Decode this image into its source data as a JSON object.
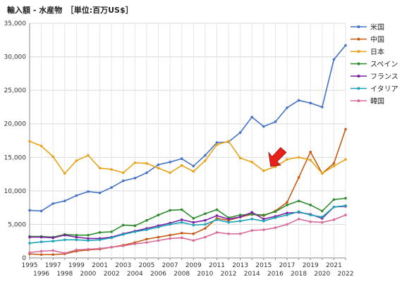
{
  "chart_data": {
    "type": "line",
    "title": "輸入額 - 水産物　［単位:百万US$］",
    "x": [
      1995,
      1996,
      1997,
      1998,
      1999,
      2000,
      2001,
      2002,
      2003,
      2004,
      2005,
      2006,
      2007,
      2008,
      2009,
      2010,
      2011,
      2012,
      2013,
      2014,
      2015,
      2016,
      2017,
      2018,
      2019,
      2020,
      2021,
      2022
    ],
    "ylim": [
      0,
      35000
    ],
    "yticks": [
      "0",
      "5,000",
      "10,000",
      "15,000",
      "20,000",
      "25,000",
      "30,000",
      "35,000"
    ],
    "ytick_values": [
      0,
      5000,
      10000,
      15000,
      20000,
      25000,
      30000,
      35000
    ],
    "grid": true,
    "legend_position": "right",
    "annotation": "red arrow pointing at Japan 2015",
    "series": [
      {
        "name": "米国",
        "color": "#4472C4",
        "values": [
          7100,
          7000,
          8100,
          8500,
          9300,
          9900,
          9700,
          10500,
          11500,
          11900,
          12700,
          13900,
          14300,
          14800,
          13700,
          15300,
          17200,
          17300,
          18700,
          21000,
          19600,
          20300,
          22400,
          23500,
          23100,
          22500,
          29600,
          31700
        ]
      },
      {
        "name": "中国",
        "color": "#C55A11",
        "values": [
          600,
          500,
          500,
          600,
          1000,
          1200,
          1300,
          1600,
          1900,
          2300,
          2800,
          3100,
          3400,
          3700,
          3600,
          4400,
          5900,
          5600,
          6100,
          6500,
          6300,
          7000,
          8300,
          12000,
          15800,
          12600,
          14100,
          19200
        ]
      },
      {
        "name": "日本",
        "color": "#E8A317",
        "values": [
          17400,
          16700,
          15100,
          12600,
          14500,
          15300,
          13400,
          13200,
          12700,
          14200,
          14100,
          13400,
          12700,
          13800,
          12900,
          14500,
          16900,
          17400,
          14900,
          14300,
          13000,
          13600,
          14700,
          15000,
          14600,
          12600,
          13700,
          14700
        ]
      },
      {
        "name": "スペイン",
        "color": "#2E8B2E",
        "values": [
          3200,
          3200,
          3100,
          3500,
          3400,
          3400,
          3800,
          3900,
          4900,
          4800,
          5600,
          6400,
          7100,
          7200,
          5900,
          6600,
          7200,
          6000,
          6400,
          6500,
          6400,
          6900,
          7900,
          8500,
          7900,
          7000,
          8700,
          8900
        ]
      },
      {
        "name": "フランス",
        "color": "#7A1FA2",
        "values": [
          3100,
          3100,
          3000,
          3400,
          3100,
          2900,
          2900,
          3100,
          3600,
          4000,
          4400,
          4800,
          5200,
          5700,
          5300,
          5600,
          6300,
          5800,
          6100,
          6800,
          5800,
          6200,
          6700,
          6800,
          6500,
          5900,
          7600,
          7700
        ]
      },
      {
        "name": "イタリア",
        "color": "#1BA3B8",
        "values": [
          2200,
          2400,
          2500,
          2700,
          2700,
          2600,
          2700,
          3000,
          3500,
          3900,
          4200,
          4600,
          5000,
          5300,
          4900,
          5000,
          5700,
          5300,
          5500,
          5800,
          5500,
          6000,
          6400,
          6900,
          6400,
          6100,
          7600,
          7800
        ]
      },
      {
        "name": "韓国",
        "color": "#D86A99",
        "values": [
          800,
          1000,
          1100,
          700,
          1200,
          1300,
          1400,
          1600,
          1800,
          2100,
          2300,
          2600,
          2900,
          3000,
          2600,
          3100,
          3800,
          3600,
          3600,
          4100,
          4200,
          4500,
          5000,
          5800,
          5400,
          5300,
          5700,
          6400
        ]
      }
    ]
  }
}
